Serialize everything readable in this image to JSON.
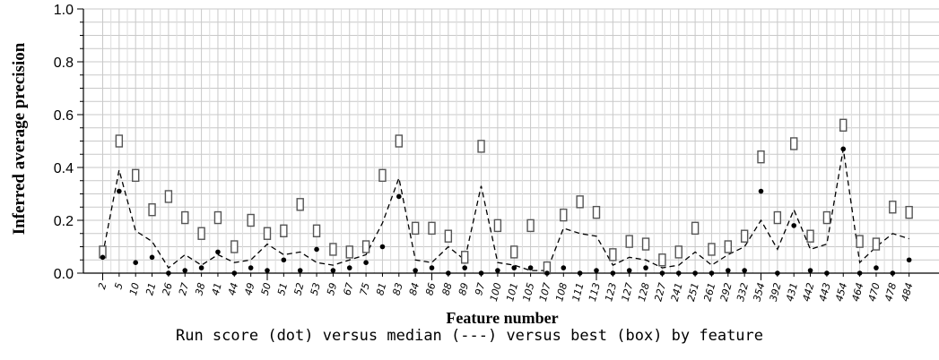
{
  "chart_data": {
    "type": "scatter",
    "caption": "Run score (dot) versus median (---) versus best (box) by feature",
    "xlabel": "Feature number",
    "ylabel": "Inferred average precision",
    "ylim": [
      0,
      1.0
    ],
    "yticks": [
      "0.0",
      "0.2",
      "0.4",
      "0.6",
      "0.8",
      "1.0"
    ],
    "grid": true,
    "categories": [
      "2",
      "5",
      "10",
      "21",
      "26",
      "27",
      "38",
      "41",
      "44",
      "49",
      "50",
      "51",
      "52",
      "53",
      "59",
      "67",
      "75",
      "81",
      "83",
      "84",
      "86",
      "88",
      "89",
      "97",
      "100",
      "101",
      "105",
      "107",
      "108",
      "111",
      "113",
      "123",
      "127",
      "128",
      "227",
      "241",
      "251",
      "261",
      "292",
      "332",
      "354",
      "392",
      "431",
      "442",
      "443",
      "454",
      "464",
      "470",
      "478",
      "484"
    ],
    "series": [
      {
        "marker": "dot",
        "values": [
          0.06,
          0.31,
          0.04,
          0.06,
          0.0,
          0.01,
          0.02,
          0.08,
          0.0,
          0.02,
          0.01,
          0.05,
          0.01,
          0.09,
          0.01,
          0.02,
          0.04,
          0.1,
          0.29,
          0.01,
          0.02,
          0.0,
          0.02,
          0.0,
          0.01,
          0.02,
          0.02,
          0.0,
          0.02,
          0.0,
          0.01,
          0.0,
          0.01,
          0.02,
          0.0,
          0.0,
          0.0,
          0.0,
          0.01,
          0.01,
          0.31,
          0.0,
          0.18,
          0.01,
          0.0,
          0.47,
          0.0,
          0.02,
          0.0,
          0.05
        ]
      },
      {
        "marker": "dashed-line",
        "values": [
          0.07,
          0.39,
          0.16,
          0.12,
          0.02,
          0.07,
          0.03,
          0.07,
          0.04,
          0.05,
          0.11,
          0.07,
          0.08,
          0.04,
          0.03,
          0.05,
          0.07,
          0.19,
          0.36,
          0.05,
          0.04,
          0.1,
          0.05,
          0.33,
          0.04,
          0.03,
          0.01,
          0.01,
          0.17,
          0.15,
          0.14,
          0.03,
          0.06,
          0.05,
          0.02,
          0.03,
          0.08,
          0.03,
          0.07,
          0.1,
          0.2,
          0.09,
          0.24,
          0.09,
          0.11,
          0.47,
          0.04,
          0.1,
          0.15,
          0.13
        ]
      },
      {
        "marker": "box",
        "values": [
          0.08,
          0.5,
          0.37,
          0.24,
          0.29,
          0.21,
          0.15,
          0.21,
          0.1,
          0.2,
          0.15,
          0.16,
          0.26,
          0.16,
          0.09,
          0.08,
          0.1,
          0.37,
          0.5,
          0.17,
          0.17,
          0.14,
          0.06,
          0.48,
          0.18,
          0.08,
          0.18,
          0.02,
          0.22,
          0.27,
          0.23,
          0.07,
          0.12,
          0.11,
          0.05,
          0.08,
          0.17,
          0.09,
          0.1,
          0.14,
          0.44,
          0.21,
          0.49,
          0.14,
          0.21,
          0.56,
          0.12,
          0.11,
          0.25,
          0.23
        ]
      }
    ]
  }
}
